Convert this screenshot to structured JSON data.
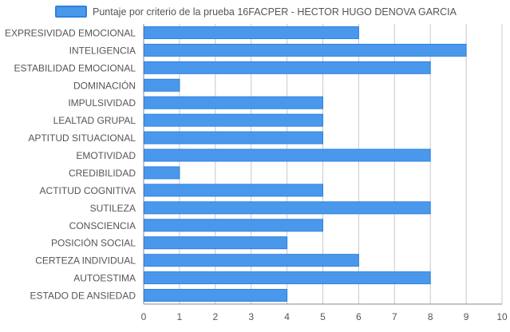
{
  "chart_data": {
    "type": "bar",
    "orientation": "horizontal",
    "categories": [
      "EXPRESIVIDAD EMOCIONAL",
      "INTELIGENCIA",
      "ESTABILIDAD EMOCIONAL",
      "DOMINACIÓN",
      "IMPULSIVIDAD",
      "LEALTAD GRUPAL",
      "APTITUD SITUACIONAL",
      "EMOTIVIDAD",
      "CREDIBILIDAD",
      "ACTITUD COGNITIVA",
      "SUTILEZA",
      "CONSCIENCIA",
      "POSICIÓN SOCIAL",
      "CERTEZA INDIVIDUAL",
      "AUTOESTIMA",
      "ESTADO DE ANSIEDAD"
    ],
    "series": [
      {
        "name": "Puntaje por criterio de la prueba 16FACPER - HECTOR HUGO DENOVA GARCIA",
        "values": [
          6,
          9,
          8,
          1,
          5,
          5,
          5,
          8,
          1,
          5,
          8,
          5,
          4,
          6,
          8,
          4
        ]
      }
    ],
    "xlim": [
      0,
      10
    ],
    "xticks": [
      "0",
      "1",
      "2",
      "3",
      "4",
      "5",
      "6",
      "7",
      "8",
      "9",
      "10"
    ],
    "grid": true,
    "legend_position": "top",
    "colors": {
      "bar_fill": "#4a98ec",
      "bar_stroke": "#2f80dc",
      "grid": "#c8c8c8",
      "axis": "#888888",
      "text": "#555555"
    }
  }
}
